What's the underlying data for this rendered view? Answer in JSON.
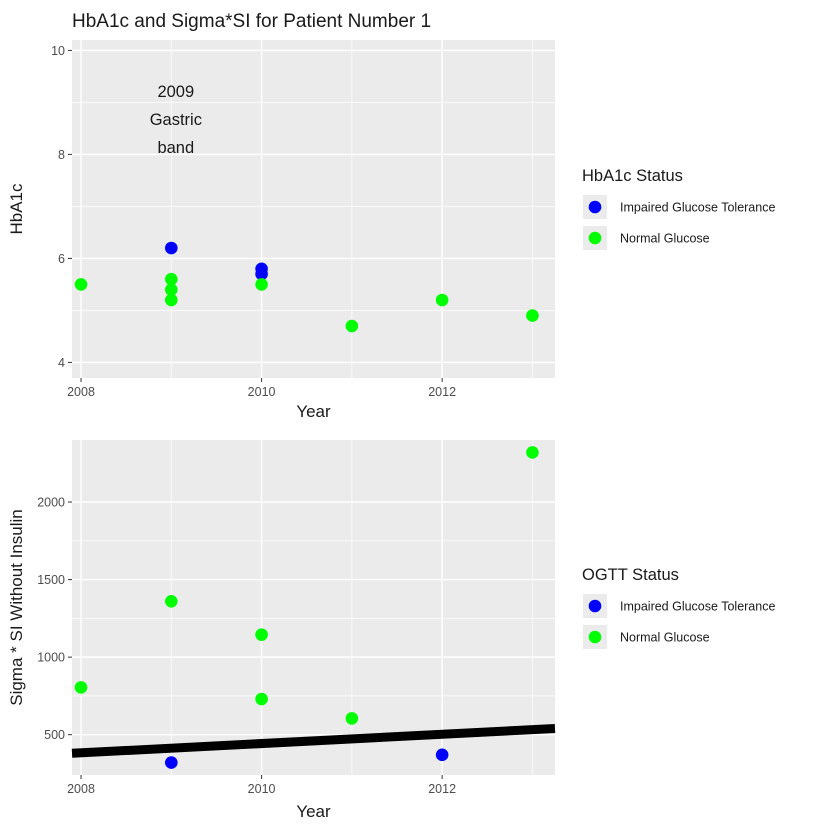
{
  "title": "HbA1c and Sigma*SI for Patient Number 1",
  "colors": {
    "panel_bg": "#ebebeb",
    "grid": "#ffffff",
    "Impaired Glucose Tolerance": "#0000ff",
    "Normal Glucose": "#00ff00",
    "line": "#000000"
  },
  "chart_data": [
    {
      "type": "scatter",
      "xlabel": "Year",
      "ylabel": "HbA1c",
      "xlim": [
        2007.9,
        2013.25
      ],
      "ylim": [
        3.7,
        10.2
      ],
      "x_ticks": [
        2008,
        2010,
        2012
      ],
      "y_ticks": [
        4,
        6,
        8,
        10
      ],
      "grid": true,
      "legend": {
        "title": "HbA1c Status",
        "placement": "right",
        "entries": [
          "Impaired Glucose Tolerance",
          "Normal Glucose"
        ]
      },
      "annotation": {
        "lines": [
          "2009",
          "Gastric",
          "band"
        ],
        "x": 2009.05,
        "y": 9.1
      },
      "series": [
        {
          "name": "Impaired Glucose Tolerance",
          "points": [
            [
              2009,
              6.2
            ],
            [
              2010,
              5.8
            ],
            [
              2010,
              5.7
            ]
          ]
        },
        {
          "name": "Normal Glucose",
          "points": [
            [
              2008,
              5.5
            ],
            [
              2009,
              5.6
            ],
            [
              2009,
              5.4
            ],
            [
              2009,
              5.2
            ],
            [
              2010,
              5.5
            ],
            [
              2011,
              4.7
            ],
            [
              2012,
              5.2
            ],
            [
              2013,
              4.9
            ]
          ]
        }
      ]
    },
    {
      "type": "scatter",
      "xlabel": "Year",
      "ylabel": "Sigma * SI Without Insulin",
      "xlim": [
        2007.9,
        2013.25
      ],
      "ylim": [
        240,
        2400
      ],
      "x_ticks": [
        2008,
        2010,
        2012
      ],
      "y_ticks": [
        500,
        1000,
        1500,
        2000
      ],
      "grid": true,
      "legend": {
        "title": "OGTT Status",
        "placement": "right",
        "entries": [
          "Impaired Glucose Tolerance",
          "Normal Glucose"
        ]
      },
      "trend_line": {
        "x": [
          2007.9,
          2013.25
        ],
        "y": [
          380,
          540
        ]
      },
      "series": [
        {
          "name": "Impaired Glucose Tolerance",
          "points": [
            [
              2009,
              320
            ],
            [
              2012,
              370
            ]
          ]
        },
        {
          "name": "Normal Glucose",
          "points": [
            [
              2008,
              805
            ],
            [
              2009,
              1360
            ],
            [
              2010,
              1145
            ],
            [
              2010,
              730
            ],
            [
              2011,
              605
            ],
            [
              2013,
              2320
            ]
          ]
        }
      ]
    }
  ]
}
